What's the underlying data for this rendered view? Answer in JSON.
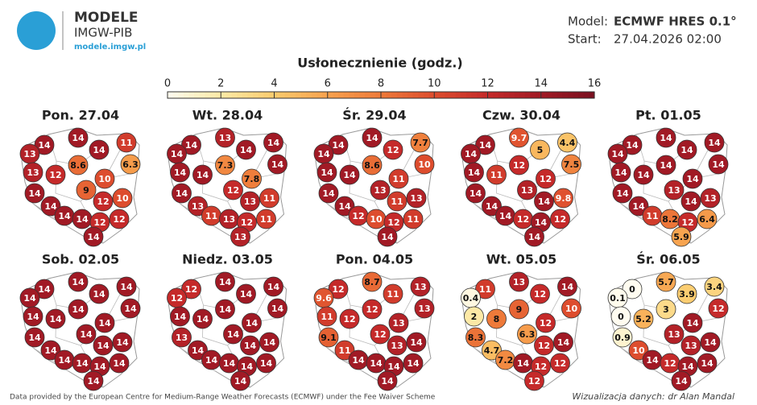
{
  "header": {
    "logo_line1": "MODELE",
    "logo_line2": "IMGW-PIB",
    "logo_url": "modele.imgw.pl",
    "model_label": "Model:",
    "model_value": "ECMWF HRES 0.1°",
    "start_label": "Start:",
    "start_value": "27.04.2026 02:00"
  },
  "colorbar": {
    "title": "Usłonecznienie (godz.)",
    "ticks": [
      0,
      2,
      4,
      6,
      8,
      10,
      12,
      14,
      16
    ],
    "colors": [
      "#fffcf0",
      "#fde9a6",
      "#fbcb6e",
      "#f7a24e",
      "#ee7a3a",
      "#dd4d2e",
      "#c52a2a",
      "#a11a25",
      "#7a1020"
    ]
  },
  "maps": [
    {
      "title": "Pon. 27.04",
      "values": [
        14,
        14,
        11,
        13,
        14,
        8.6,
        6.3,
        13,
        12,
        10,
        14,
        9,
        10,
        14,
        12,
        14,
        14,
        12,
        12,
        14
      ]
    },
    {
      "title": "Wt. 28.04",
      "values": [
        14,
        13,
        14,
        14,
        14,
        7.3,
        14,
        14,
        14,
        7.8,
        14,
        12,
        11,
        13,
        13,
        11,
        13,
        11,
        12,
        13
      ]
    },
    {
      "title": "Śr. 29.04",
      "values": [
        14,
        14,
        7.7,
        14,
        12,
        8.6,
        10,
        14,
        14,
        11,
        14,
        13,
        13,
        14,
        11,
        12,
        10,
        11,
        12,
        14
      ]
    },
    {
      "title": "Czw. 30.04",
      "values": [
        14,
        9.7,
        4.4,
        14,
        5,
        12,
        7.5,
        14,
        11,
        12,
        14,
        13,
        9.8,
        14,
        14,
        14,
        12,
        12,
        14,
        14
      ]
    },
    {
      "title": "Pt. 01.05",
      "values": [
        14,
        14,
        14,
        14,
        14,
        14,
        14,
        14,
        14,
        14,
        14,
        13,
        13,
        14,
        14,
        11,
        8.2,
        6.4,
        12,
        5.9
      ]
    },
    {
      "title": "Sob. 02.05",
      "values": [
        14,
        14,
        14,
        14,
        14,
        14,
        14,
        14,
        14,
        14,
        14,
        14,
        14,
        14,
        14,
        14,
        14,
        14,
        14,
        14
      ]
    },
    {
      "title": "Niedz. 03.05",
      "values": [
        12,
        14,
        14,
        12,
        14,
        14,
        14,
        14,
        14,
        14,
        13,
        14,
        14,
        14,
        14,
        14,
        14,
        14,
        14,
        14
      ]
    },
    {
      "title": "Pon. 04.05",
      "values": [
        12,
        8.7,
        13,
        9.6,
        11,
        12,
        13,
        11,
        12,
        13,
        9.1,
        12,
        14,
        11,
        13,
        14,
        14,
        14,
        14,
        14
      ]
    },
    {
      "title": "Wt. 05.05",
      "values": [
        11,
        13,
        14,
        0.4,
        12,
        9,
        10,
        2,
        8,
        12,
        8.3,
        6.3,
        14,
        4.7,
        12,
        7.2,
        14,
        12,
        12,
        12
      ]
    },
    {
      "title": "Śr. 06.05",
      "values": [
        0,
        5.7,
        3.4,
        0.1,
        3.9,
        3,
        12,
        0,
        5.2,
        14,
        0.9,
        13,
        14,
        10,
        13,
        14,
        12,
        14,
        14,
        14
      ]
    }
  ],
  "footer": {
    "source": "Data provided by the European Centre for Medium-Range Weather Forecasts (ECMWF) under the Fee Waiver Scheme",
    "credit": "Wizualizacja danych: dr Alan Mandal"
  }
}
